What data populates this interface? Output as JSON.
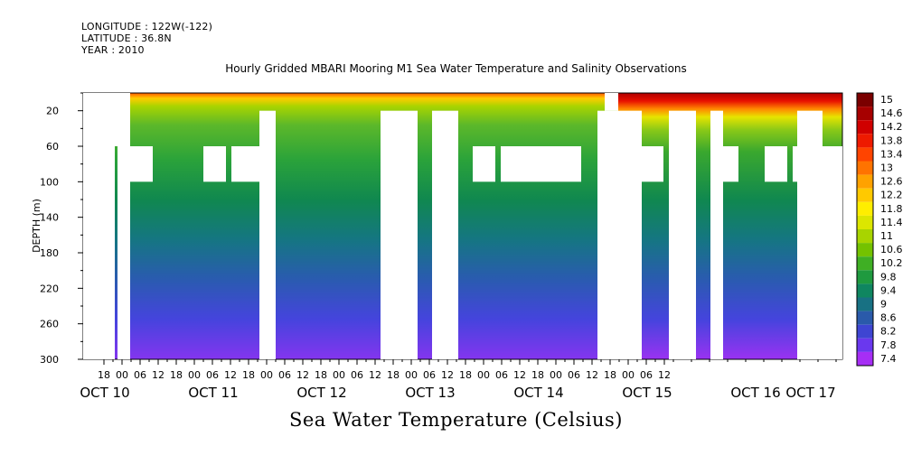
{
  "header": {
    "longitude": "LONGITUDE : 122W(-122)",
    "latitude": "LATITUDE : 36.8N",
    "year": "YEAR : 2010"
  },
  "title": "Hourly Gridded MBARI Mooring M1 Sea Water Temperature and Salinity Observations",
  "bottom_title": "Sea Water Temperature (Celsius)",
  "chart_data": {
    "type": "heatmap",
    "ylabel": "DEPTH (m)",
    "yrange": [
      0,
      300
    ],
    "ytick_values": [
      20,
      60,
      100,
      140,
      180,
      220,
      260,
      300
    ],
    "y_inverted": true,
    "xrange_hours": [
      "OCT 09 12:00",
      "OCT 17 14:00"
    ],
    "hour_tick_labels": [
      "18",
      "00",
      "06",
      "12",
      "18",
      "00",
      "06",
      "12",
      "18",
      "00",
      "06",
      "12",
      "18",
      "00",
      "06",
      "12",
      "18",
      "00",
      "06",
      "12",
      "18",
      "00",
      "06",
      "12",
      "18",
      "00",
      "06",
      "12",
      "18",
      "00",
      "06",
      "12"
    ],
    "date_labels": [
      "OCT 10",
      "OCT 11",
      "OCT 12",
      "OCT 13",
      "OCT 14",
      "OCT 15",
      "OCT 16",
      "OCT 17"
    ],
    "colorbar_levels": [
      "15",
      "14.6",
      "14.2",
      "13.8",
      "13.4",
      "13",
      "12.6",
      "12.2",
      "11.8",
      "11.4",
      "11",
      "10.6",
      "10.2",
      "9.8",
      "9.4",
      "9",
      "8.6",
      "8.2",
      "7.8",
      "7.4"
    ],
    "colorbar_colors": [
      "#7a0000",
      "#a60000",
      "#d00000",
      "#ee1a00",
      "#ff4400",
      "#ff7300",
      "#ffa200",
      "#ffc900",
      "#ffee00",
      "#dce600",
      "#a8d400",
      "#74c200",
      "#3faf24",
      "#1f9a3f",
      "#0f8660",
      "#187183",
      "#2a5aaa",
      "#3e45d2",
      "#6a38ee",
      "#a62ef5"
    ],
    "series_description": "Temperature warmest near surface, decreasing to about 7.4 C at 300 m; white regions are missing data"
  }
}
